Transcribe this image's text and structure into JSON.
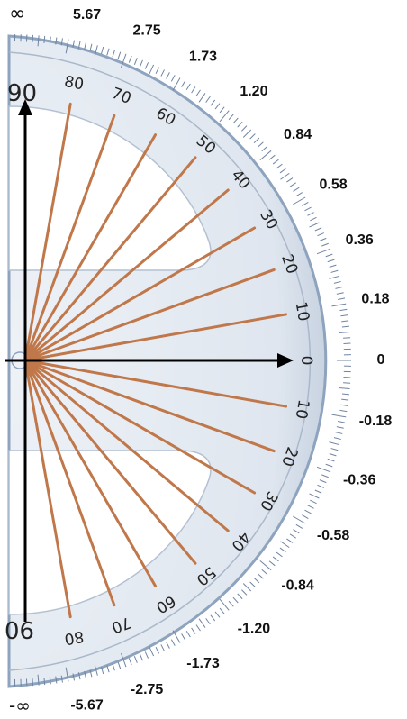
{
  "diagram": {
    "degree_labels_upper": [
      "80",
      "70",
      "60",
      "50",
      "40",
      "30",
      "20",
      "10"
    ],
    "degree_labels_lower": [
      "10",
      "20",
      "30",
      "40",
      "50",
      "60",
      "70",
      "80"
    ],
    "zero_label": "0",
    "top_axis_label": "90",
    "bottom_axis_label": "90",
    "tangent_upper": [
      {
        "angle": 80,
        "text": "5.67"
      },
      {
        "angle": 70,
        "text": "2.75"
      },
      {
        "angle": 60,
        "text": "1.73"
      },
      {
        "angle": 50,
        "text": "1.20"
      },
      {
        "angle": 40,
        "text": "0.84"
      },
      {
        "angle": 30,
        "text": "0.58"
      },
      {
        "angle": 20,
        "text": "0.36"
      },
      {
        "angle": 10,
        "text": "0.18"
      }
    ],
    "tangent_zero": "0",
    "tangent_lower": [
      {
        "angle": 10,
        "text": "-0.18"
      },
      {
        "angle": 20,
        "text": "-0.36"
      },
      {
        "angle": 30,
        "text": "-0.58"
      },
      {
        "angle": 40,
        "text": "-0.84"
      },
      {
        "angle": 50,
        "text": "-1.20"
      },
      {
        "angle": 60,
        "text": "-1.73"
      },
      {
        "angle": 70,
        "text": "-2.75"
      },
      {
        "angle": 80,
        "text": "-5.67"
      }
    ],
    "infinity_top": "∞",
    "infinity_bottom": "-∞",
    "colors": {
      "ray": "#c0774a",
      "protractor_fill": "#dfe6ef",
      "protractor_edge": "#8ea3bd",
      "tick": "#6f84a2",
      "axis": "#000000"
    }
  }
}
